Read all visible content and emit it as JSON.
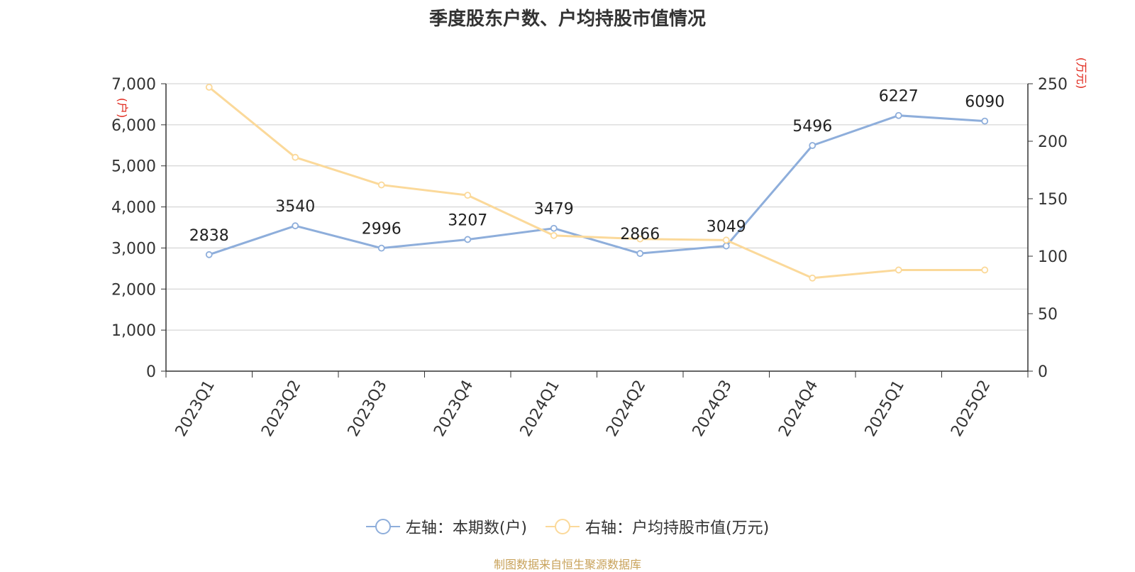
{
  "title": "季度股东户数、户均持股市值情况",
  "source": "制图数据来自恒生聚源数据库",
  "colors": {
    "left_series": "#8eaedb",
    "right_series": "#fbd99a",
    "unit_label": "#e0261a",
    "axis_text": "#333333",
    "grid": "#cccccc"
  },
  "chart_data": {
    "type": "line",
    "title": "季度股东户数、户均持股市值情况",
    "categories": [
      "2023Q1",
      "2023Q2",
      "2023Q3",
      "2023Q4",
      "2024Q1",
      "2024Q2",
      "2024Q3",
      "2024Q4",
      "2025Q1",
      "2025Q2"
    ],
    "left_axis": {
      "unit": "(户)",
      "ylim": [
        0,
        7000
      ],
      "ticks": [
        0,
        1000,
        2000,
        3000,
        4000,
        5000,
        6000,
        7000
      ],
      "tick_labels": [
        "0",
        "1,000",
        "2,000",
        "3,000",
        "4,000",
        "5,000",
        "6,000",
        "7,000"
      ]
    },
    "right_axis": {
      "unit": "(万元)",
      "ylim": [
        0,
        250
      ],
      "ticks": [
        0,
        50,
        100,
        150,
        200,
        250
      ],
      "tick_labels": [
        "0",
        "50",
        "100",
        "150",
        "200",
        "250"
      ]
    },
    "series": [
      {
        "name": "左轴：本期数(户)",
        "axis": "left",
        "color": "#8eaedb",
        "values": [
          2838,
          3540,
          2996,
          3207,
          3479,
          2866,
          3049,
          5496,
          6227,
          6090
        ],
        "labels": [
          "2838",
          "3540",
          "2996",
          "3207",
          "3479",
          "2866",
          "3049",
          "5496",
          "6227",
          "6090"
        ]
      },
      {
        "name": "右轴：户均持股市值(万元)",
        "axis": "right",
        "color": "#fbd99a",
        "values": [
          247,
          186,
          162,
          153,
          118,
          115,
          114,
          81,
          88,
          88
        ]
      }
    ],
    "grid": true,
    "legend_position": "bottom"
  }
}
